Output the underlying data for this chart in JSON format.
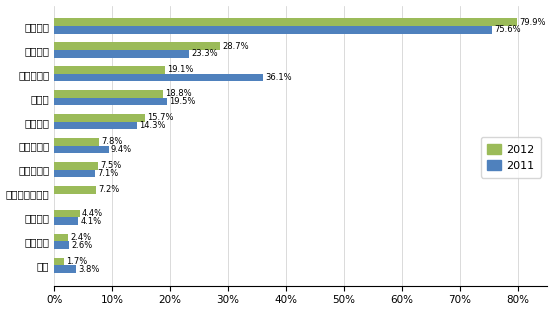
{
  "categories": [
    "产品质量",
    "供货能力",
    "产品性价比",
    "交货期",
    "技术支持",
    "技术领先性",
    "品牌知名度",
    "小批量供应服务",
    "产品组合",
    "付款条件",
    "信誉"
  ],
  "values_2012": [
    79.9,
    28.7,
    19.1,
    18.8,
    15.7,
    7.8,
    7.5,
    7.2,
    4.4,
    2.4,
    1.7
  ],
  "values_2011": [
    75.6,
    23.3,
    36.1,
    19.5,
    14.3,
    9.4,
    7.1,
    0,
    4.1,
    2.6,
    3.8
  ],
  "has_2011": [
    true,
    true,
    true,
    true,
    true,
    true,
    true,
    false,
    true,
    true,
    true
  ],
  "labels_2012": [
    "79.9%",
    "28.7%",
    "19.1%",
    "18.8%",
    "15.7%",
    "7.8%",
    "7.5%",
    "7.2%",
    "4.4%",
    "2.4%",
    "1.7%"
  ],
  "labels_2011": [
    "75.6%",
    "23.3%",
    "36.1%",
    "19.5%",
    "14.3%",
    "9.4%",
    "7.1%",
    "",
    "4.1%",
    "2.6%",
    "3.8%"
  ],
  "color_2012": "#9BBB59",
  "color_2011": "#4F81BD",
  "xlim": [
    0,
    85
  ],
  "xticks": [
    0,
    10,
    20,
    30,
    40,
    50,
    60,
    70,
    80
  ],
  "xtick_labels": [
    "0%",
    "10%",
    "20%",
    "30%",
    "40%",
    "50%",
    "60%",
    "70%",
    "80%"
  ],
  "legend_2012": "2012",
  "legend_2011": "2011",
  "bar_height": 0.32,
  "background_color": "#FFFFFF",
  "label_fontsize": 6.0,
  "tick_fontsize": 7.5
}
